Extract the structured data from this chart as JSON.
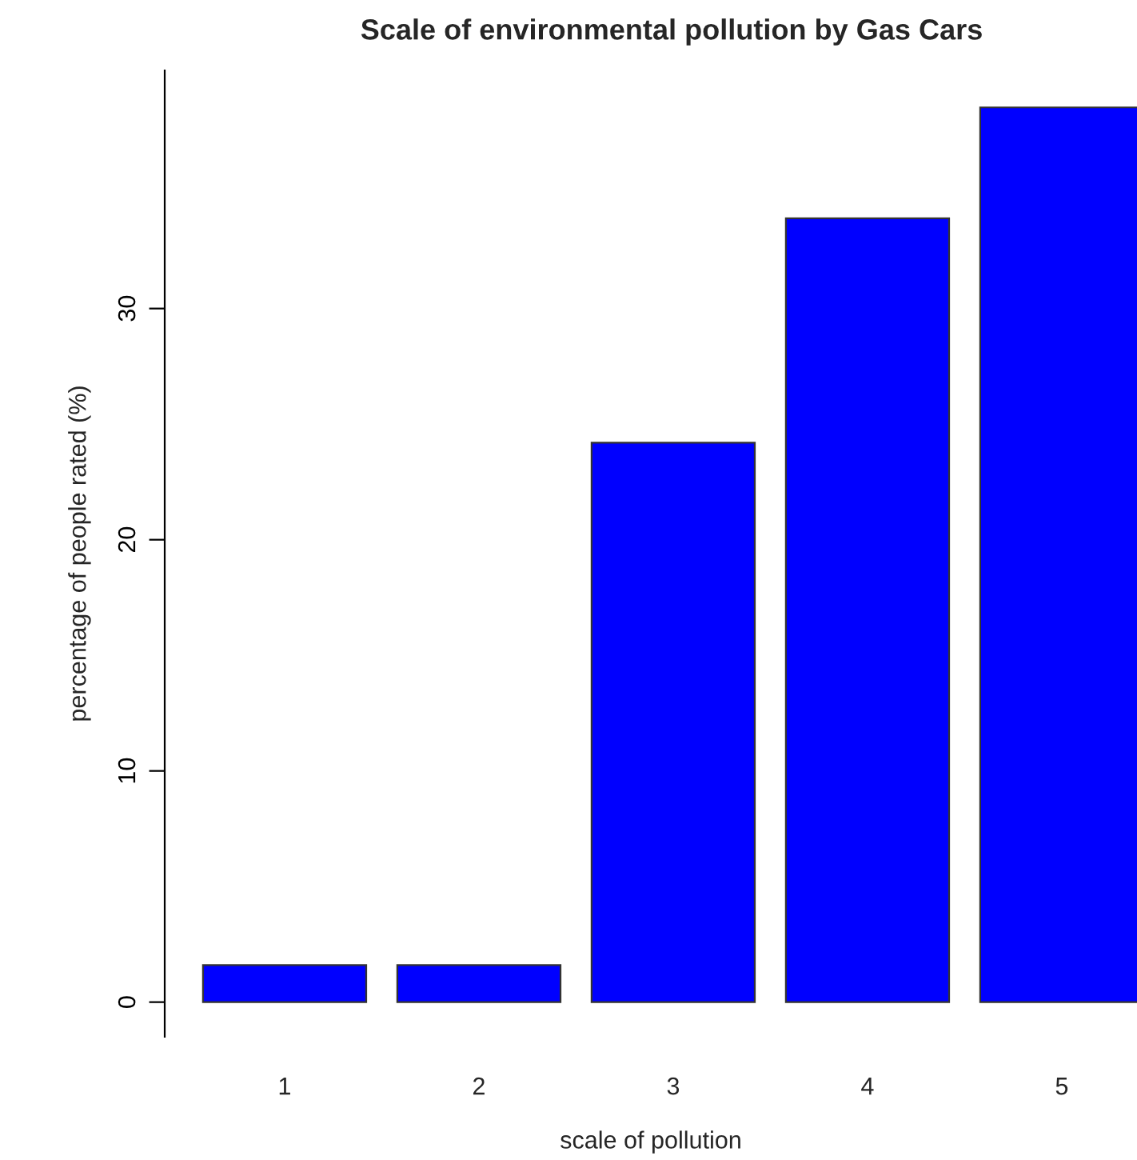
{
  "chart_data": {
    "type": "bar",
    "title": "Scale of environmental pollution by Gas Cars",
    "xlabel": "scale of pollution",
    "ylabel": "percentage of people rated (%)",
    "categories": [
      "1",
      "2",
      "3",
      "4",
      "5"
    ],
    "values": [
      1.6,
      1.6,
      24.2,
      33.9,
      38.7
    ],
    "color": "#0000ff",
    "ylim": [
      -1.5,
      40.3
    ],
    "yticks": [
      0,
      10,
      20,
      30
    ],
    "grid": false
  }
}
